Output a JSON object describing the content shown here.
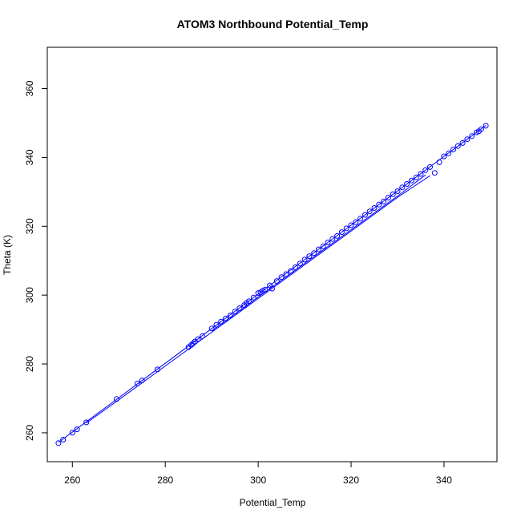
{
  "chart_data": {
    "type": "scatter",
    "title": "ATOM3 Northbound Potential_Temp",
    "xlabel": "Potential_Temp",
    "ylabel": "Theta (K)",
    "xlim": [
      254.6,
      351.4
    ],
    "ylim": [
      251.6,
      372.0
    ],
    "xticks": [
      260,
      280,
      300,
      320,
      340
    ],
    "yticks": [
      260,
      280,
      300,
      320,
      340,
      360
    ],
    "grid": false,
    "legend": "none",
    "color": "#0000ff",
    "point_style": "open-circle",
    "series": [
      {
        "type": "points",
        "x": [
          257.0,
          258.0,
          260.0,
          261.0,
          263.0,
          269.5,
          274.0,
          275.0,
          278.3,
          285.0,
          285.6,
          286.0,
          286.4,
          287.0,
          288.0,
          290.0,
          291.0,
          292.0,
          293.0,
          294.0,
          295.0,
          296.0,
          297.0,
          297.5,
          298.0,
          299.0,
          300.0,
          300.5,
          301.0,
          301.5,
          302.5,
          303.0,
          304.0,
          305.0,
          306.0,
          307.0,
          308.0,
          309.0,
          310.0,
          311.0,
          312.0,
          313.0,
          314.0,
          315.0,
          316.0,
          317.0,
          318.0,
          319.0,
          320.0,
          321.0,
          322.0,
          323.0,
          324.0,
          325.0,
          326.0,
          327.0,
          328.0,
          329.0,
          330.0,
          331.0,
          332.0,
          333.0,
          334.0,
          335.0,
          336.0,
          337.0,
          338.0,
          339.0,
          340.0,
          341.0,
          342.0,
          343.0,
          344.0,
          345.0,
          346.0,
          347.0,
          347.5,
          348.0,
          349.0
        ],
        "y": [
          257.0,
          258.0,
          260.0,
          261.0,
          263.0,
          269.8,
          274.3,
          275.2,
          278.4,
          284.9,
          285.5,
          286.0,
          286.5,
          287.2,
          288.1,
          290.3,
          291.4,
          292.3,
          293.2,
          294.1,
          295.2,
          296.2,
          297.1,
          297.7,
          298.2,
          299.3,
          300.6,
          300.8,
          301.3,
          301.6,
          302.8,
          301.9,
          304.1,
          305.2,
          306.1,
          307.0,
          308.1,
          309.2,
          310.3,
          311.3,
          312.2,
          313.3,
          314.2,
          315.3,
          316.3,
          317.2,
          318.3,
          319.4,
          320.3,
          321.2,
          322.2,
          323.3,
          324.3,
          325.3,
          326.3,
          327.2,
          328.3,
          329.3,
          330.2,
          331.3,
          332.3,
          333.3,
          334.2,
          335.2,
          336.3,
          337.2,
          335.5,
          338.6,
          340.3,
          341.2,
          342.3,
          343.3,
          344.2,
          345.3,
          346.2,
          347.3,
          347.6,
          348.2,
          349.2
        ]
      },
      {
        "type": "line",
        "x": [
          257.0,
          263.0,
          270.0,
          278.0,
          285.0,
          290.0,
          295.0,
          300.0,
          305.0,
          310.0,
          315.0,
          320.0,
          325.0,
          330.0,
          335.0,
          340.0,
          345.0,
          349.0
        ],
        "y": [
          257.2,
          263.2,
          270.2,
          278.2,
          285.2,
          290.3,
          295.3,
          300.3,
          305.3,
          310.3,
          315.3,
          320.3,
          325.3,
          330.3,
          335.3,
          340.3,
          345.3,
          349.3
        ]
      },
      {
        "type": "line",
        "x": [
          263.0,
          270.0,
          280.0,
          290.0,
          300.0,
          310.0,
          320.0,
          330.0,
          337.0
        ],
        "y": [
          262.8,
          269.6,
          279.4,
          289.2,
          299.0,
          308.8,
          318.6,
          328.4,
          334.7
        ]
      },
      {
        "type": "line",
        "x": [
          290.0,
          300.0,
          310.0,
          320.0,
          330.0,
          336.0
        ],
        "y": [
          289.6,
          299.4,
          309.2,
          319.0,
          328.8,
          334.9
        ]
      }
    ]
  }
}
